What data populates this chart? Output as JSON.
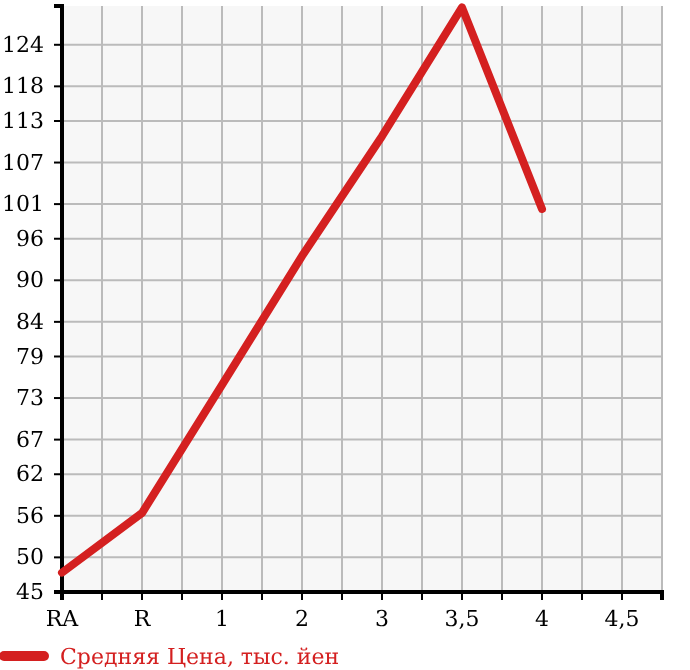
{
  "chart_data": {
    "type": "line",
    "categories": [
      "RA",
      "R",
      "1",
      "2",
      "3",
      "3,5",
      "4",
      "4,5"
    ],
    "series": [
      {
        "name": "Средняя Цена, тыс. йен",
        "color": "#d42020",
        "values": [
          47.8,
          56.4,
          74.9,
          93.5,
          110.8,
          129.4,
          100.3,
          null
        ]
      }
    ],
    "ylim": [
      45,
      129.6
    ],
    "yticks": [
      45,
      50,
      56,
      62,
      67,
      73,
      79,
      84,
      90,
      96,
      101,
      107,
      113,
      118,
      124
    ],
    "grid": true,
    "legend": "bottom",
    "marker": "none",
    "line_style": "solid"
  }
}
